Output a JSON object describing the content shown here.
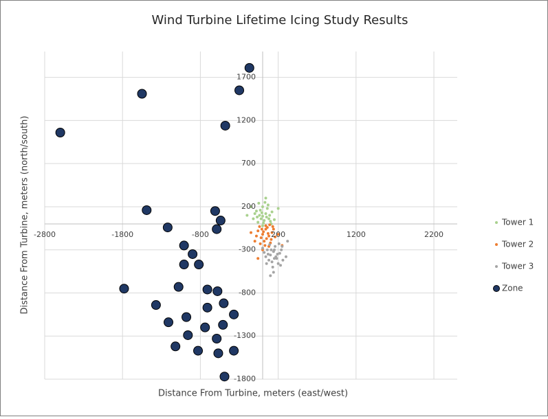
{
  "chart_data": {
    "type": "scatter",
    "title": "Wind Turbine Lifetime Icing Study Results",
    "x_label": "Distance From Turbine, meters (east/west)",
    "y_label": "Distance From Turbine, meters (north/south)",
    "xlim": [
      -2800,
      2500
    ],
    "ylim": [
      -1800,
      2000
    ],
    "xticks": [
      -2800,
      -1800,
      -800,
      200,
      1200,
      2200
    ],
    "yticks": [
      -1800,
      -1300,
      -800,
      -300,
      200,
      700,
      1200,
      1700
    ],
    "grid": true,
    "legend": "right",
    "series": [
      {
        "name": "Tower 1",
        "color": "#a9d18e",
        "marker": "dot",
        "x": [
          -120,
          -80,
          -40,
          0,
          40,
          80,
          120,
          -60,
          20,
          60,
          -100,
          0,
          30,
          -30,
          90,
          -150,
          150,
          10,
          -20,
          50,
          70,
          -70,
          110,
          -10,
          40,
          -200,
          200,
          0,
          -50,
          100
        ],
        "y": [
          60,
          150,
          100,
          200,
          120,
          60,
          140,
          20,
          40,
          180,
          120,
          90,
          250,
          160,
          100,
          200,
          50,
          10,
          60,
          80,
          220,
          80,
          0,
          130,
          300,
          100,
          180,
          -20,
          240,
          30
        ]
      },
      {
        "name": "Tower 2",
        "color": "#ed7d31",
        "marker": "dot",
        "x": [
          -60,
          0,
          40,
          80,
          120,
          20,
          -20,
          60,
          100,
          -80,
          10,
          50,
          140,
          -40,
          90,
          30,
          -100,
          160,
          70,
          -10,
          110,
          0,
          -150,
          200,
          40,
          -30,
          80,
          130,
          -60,
          250
        ],
        "y": [
          -80,
          -120,
          -60,
          -140,
          -100,
          -200,
          -160,
          -40,
          -220,
          -140,
          -90,
          -170,
          -60,
          -30,
          -10,
          -250,
          -200,
          -150,
          -110,
          -60,
          -180,
          -300,
          -100,
          -120,
          -20,
          -230,
          -260,
          -30,
          -400,
          -250
        ]
      },
      {
        "name": "Tower 3",
        "color": "#a5a5a5",
        "marker": "dot",
        "x": [
          60,
          100,
          140,
          180,
          220,
          120,
          80,
          160,
          200,
          40,
          110,
          150,
          240,
          90,
          190,
          130,
          20,
          260,
          170,
          70,
          210,
          140,
          0,
          300,
          150,
          50,
          230,
          250,
          100,
          320
        ],
        "y": [
          -300,
          -360,
          -320,
          -400,
          -340,
          -440,
          -420,
          -260,
          -460,
          -380,
          -300,
          -400,
          -300,
          -240,
          -350,
          -500,
          -330,
          -420,
          -380,
          -350,
          -230,
          -560,
          -280,
          -380,
          -300,
          -460,
          -480,
          -260,
          -600,
          -200
        ]
      },
      {
        "name": "Zone",
        "color": "#203864",
        "marker": "circle",
        "x": [
          -170,
          -300,
          -1550,
          -480,
          -2600,
          -1490,
          -610,
          -540,
          -1220,
          -590,
          -1010,
          -900,
          -1010,
          -820,
          -1780,
          -1080,
          -710,
          -580,
          -1370,
          -500,
          -710,
          -370,
          -980,
          -1210,
          -510,
          -740,
          -960,
          -590,
          -1120,
          -830,
          -570,
          -370,
          -490
        ],
        "y": [
          1810,
          1550,
          1510,
          1140,
          1060,
          160,
          150,
          40,
          -40,
          -60,
          -250,
          -350,
          -470,
          -470,
          -750,
          -730,
          -760,
          -780,
          -940,
          -920,
          -970,
          -1050,
          -1080,
          -1140,
          -1170,
          -1200,
          -1290,
          -1330,
          -1420,
          -1470,
          -1500,
          -1470,
          -1770
        ]
      }
    ]
  }
}
